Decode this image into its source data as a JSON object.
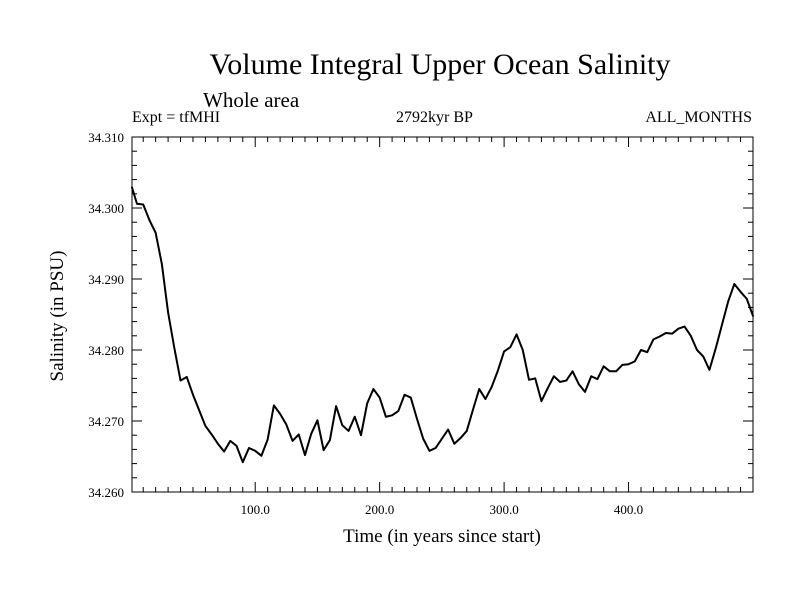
{
  "chart_data": {
    "type": "line",
    "title": "Volume Integral Upper Ocean Salinity",
    "subtitle": "Whole area",
    "annotations": {
      "left": "Expt = tfMHI",
      "center": "2792kyr BP",
      "right": "ALL_MONTHS"
    },
    "xlabel": "Time (in years since start)",
    "ylabel": "Salinity (in PSU)",
    "xlim": [
      1,
      500
    ],
    "ylim": [
      34.26,
      34.31
    ],
    "x_major_ticks": [
      100,
      200,
      300,
      400
    ],
    "x_tick_labels": [
      "100.0",
      "200.0",
      "300.0",
      "400.0"
    ],
    "x_minor_step": 10,
    "y_major_ticks": [
      34.26,
      34.27,
      34.28,
      34.29,
      34.3,
      34.31
    ],
    "y_tick_labels": [
      "34.260",
      "34.270",
      "34.280",
      "34.290",
      "34.300",
      "34.310"
    ],
    "y_minor_step": 0.002,
    "series": [
      {
        "name": "Volume Integral Upper Ocean Salinity",
        "x": [
          1,
          5,
          10,
          15,
          20,
          25,
          30,
          35,
          40,
          45,
          50,
          55,
          60,
          65,
          70,
          75,
          80,
          85,
          90,
          95,
          100,
          105,
          110,
          115,
          120,
          125,
          130,
          135,
          140,
          145,
          150,
          155,
          160,
          165,
          170,
          175,
          180,
          185,
          190,
          195,
          200,
          205,
          210,
          215,
          220,
          225,
          230,
          235,
          240,
          245,
          250,
          255,
          260,
          265,
          270,
          275,
          280,
          285,
          290,
          295,
          300,
          305,
          310,
          315,
          320,
          325,
          330,
          335,
          340,
          345,
          350,
          355,
          360,
          365,
          370,
          375,
          380,
          385,
          390,
          395,
          400,
          405,
          410,
          415,
          420,
          425,
          430,
          435,
          440,
          445,
          450,
          455,
          460,
          465,
          470,
          475,
          480,
          485,
          490,
          495,
          500
        ],
        "values": [
          34.3029,
          34.3006,
          34.3005,
          34.2983,
          34.2965,
          34.2921,
          34.2853,
          34.2803,
          34.2757,
          34.2762,
          34.2737,
          34.2715,
          34.2693,
          34.2681,
          34.2668,
          34.2657,
          34.2672,
          34.2665,
          34.2642,
          34.2662,
          34.2658,
          34.2651,
          34.2674,
          34.2722,
          34.271,
          34.2695,
          34.2672,
          34.2681,
          34.2652,
          34.2682,
          34.2701,
          34.2659,
          34.2673,
          34.2721,
          34.2694,
          34.2686,
          34.2706,
          34.268,
          34.2725,
          34.2745,
          34.2733,
          34.2706,
          34.2708,
          34.2714,
          34.2737,
          34.2733,
          34.2703,
          34.2675,
          34.2658,
          34.2662,
          34.2675,
          34.2688,
          34.2668,
          34.2676,
          34.2686,
          34.2716,
          34.2745,
          34.2731,
          34.2748,
          34.2771,
          34.2798,
          34.2804,
          34.2822,
          34.28,
          34.2758,
          34.276,
          34.2728,
          34.2746,
          34.2763,
          34.2755,
          34.2757,
          34.277,
          34.2752,
          34.2741,
          34.2763,
          34.2759,
          34.2777,
          34.277,
          34.277,
          34.2779,
          34.278,
          34.2784,
          34.28,
          34.2797,
          34.2815,
          34.2819,
          34.2824,
          34.2823,
          34.283,
          34.2833,
          34.282,
          34.28,
          34.2791,
          34.2772,
          34.2802,
          34.2835,
          34.2868,
          34.2893,
          34.2882,
          34.2872,
          34.2848
        ]
      }
    ],
    "colors": {
      "line": "#000000",
      "axes": "#000000",
      "background": "#ffffff"
    }
  }
}
